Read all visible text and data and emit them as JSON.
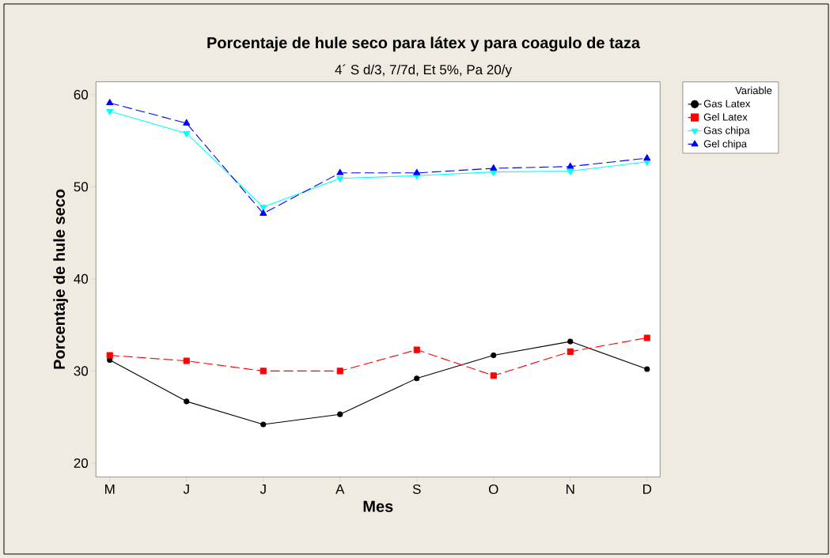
{
  "chart_data": {
    "type": "line",
    "title": "Porcentaje de hule seco para látex y para coagulo de taza",
    "subtitle": "4´ S   d/3, 7/7d, Et 5%, Pa 20/y",
    "xlabel": "Mes",
    "ylabel": "Porcentaje de hule seco",
    "legend_title": "Variable",
    "categories": [
      "M",
      "J",
      "J",
      "A",
      "S",
      "O",
      "N",
      "D"
    ],
    "ylim": [
      18.5,
      61.4
    ],
    "yticks": [
      20,
      30,
      40,
      50,
      60
    ],
    "grid": false,
    "legend": "top right",
    "series": [
      {
        "name": "Gas Latex",
        "color": "#000000",
        "marker": "circle",
        "line_style": "solid",
        "values": [
          31.2,
          26.7,
          24.2,
          25.3,
          29.2,
          31.7,
          33.2,
          30.2
        ]
      },
      {
        "name": "Gel Latex",
        "color": "#ff0000",
        "marker": "square",
        "line_style": "dashed",
        "values": [
          31.7,
          31.1,
          30.0,
          30.0,
          32.3,
          29.5,
          32.1,
          33.6
        ]
      },
      {
        "name": "Gas chipa",
        "color": "#00ffff",
        "marker": "triangle-down",
        "line_style": "solid",
        "values": [
          58.2,
          55.8,
          47.8,
          50.9,
          51.2,
          51.6,
          51.7,
          52.7
        ]
      },
      {
        "name": "Gel chipa",
        "color": "#0000ff",
        "marker": "triangle",
        "line_style": "dashed",
        "values": [
          59.1,
          56.9,
          47.1,
          51.5,
          51.5,
          52.0,
          52.2,
          53.1
        ]
      }
    ]
  }
}
